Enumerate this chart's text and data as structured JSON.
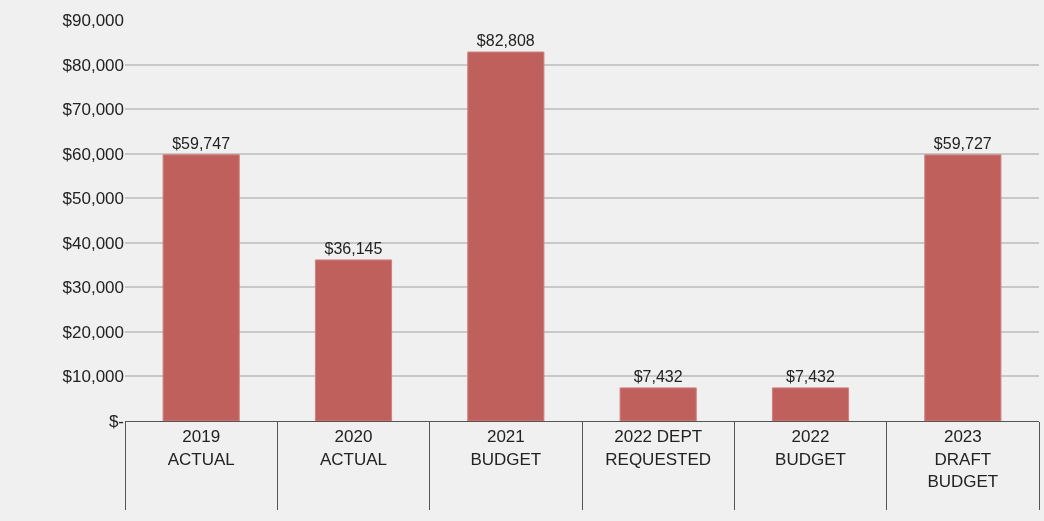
{
  "chart_data": {
    "type": "bar",
    "categories": [
      "2019\nACTUAL",
      "2020\nACTUAL",
      "2021\nBUDGET",
      "2022 DEPT\nREQUESTED",
      "2022\nBUDGET",
      "2023\nDRAFT\nBUDGET"
    ],
    "values": [
      59747,
      36145,
      82808,
      7432,
      7432,
      59727
    ],
    "value_labels": [
      "$59,747",
      "$36,145",
      "$82,808",
      "$7,432",
      "$7,432",
      "$59,727"
    ],
    "color": "#c0605d",
    "ylim": [
      0,
      90000
    ],
    "yticks": [
      {
        "value": 0,
        "label": "$-"
      },
      {
        "value": 10000,
        "label": "$10,000"
      },
      {
        "value": 20000,
        "label": "$20,000"
      },
      {
        "value": 30000,
        "label": "$30,000"
      },
      {
        "value": 40000,
        "label": "$40,000"
      },
      {
        "value": 50000,
        "label": "$50,000"
      },
      {
        "value": 60000,
        "label": "$60,000"
      },
      {
        "value": 70000,
        "label": "$70,000"
      },
      {
        "value": 80000,
        "label": "$80,000"
      },
      {
        "value": 90000,
        "label": "$90,000"
      }
    ],
    "grid": "y"
  }
}
